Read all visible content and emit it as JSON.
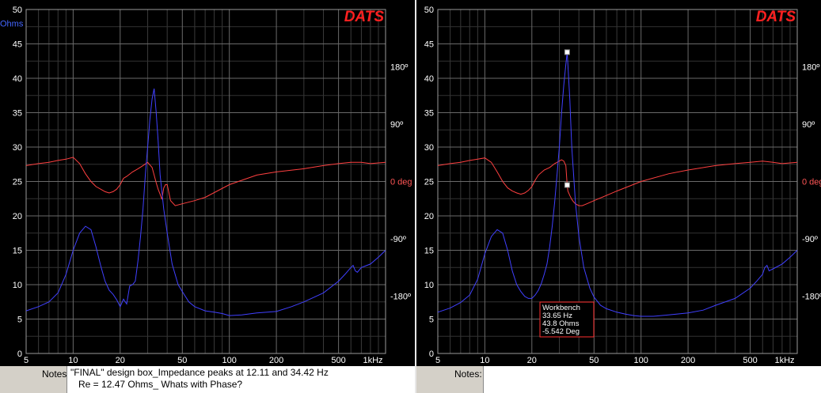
{
  "chart_data": [
    {
      "type": "line",
      "brand": "DATS",
      "xscale": "log",
      "xlim": [
        5,
        1000
      ],
      "ylim": [
        0,
        50
      ],
      "y2lim": [
        -270,
        270
      ],
      "x_ticks": [
        5,
        10,
        20,
        50,
        100,
        200,
        500,
        1000
      ],
      "x_tick_labels": [
        "5",
        "10",
        "20",
        "50",
        "100",
        "200",
        "500",
        "1kHz"
      ],
      "y_ticks": [
        0,
        5,
        10,
        15,
        20,
        25,
        30,
        35,
        40,
        45,
        50
      ],
      "y_tick_labels": [
        "0",
        "5",
        "10",
        "15",
        "20",
        "25",
        "30",
        "35",
        "40",
        "45",
        "50"
      ],
      "ylabel": "Ohms",
      "y2_ticks": [
        180,
        90,
        0,
        -90,
        -180
      ],
      "y2_tick_labels": [
        "180º",
        "90º",
        "0 deg",
        "-90º",
        "-180º"
      ],
      "grid": true,
      "series": [
        {
          "color": "#4040ff",
          "x": [
            5,
            6,
            7,
            8,
            9,
            10,
            11,
            12,
            13,
            14,
            15,
            16,
            17,
            18,
            19,
            20,
            21,
            22,
            23,
            24,
            25,
            26,
            27,
            28,
            29,
            30,
            31,
            32,
            33,
            34,
            35,
            36,
            38,
            40,
            43,
            47,
            50,
            55,
            60,
            70,
            80,
            90,
            100,
            120,
            150,
            200,
            250,
            300,
            400,
            500,
            550,
            600,
            620,
            640,
            660,
            700,
            800,
            900,
            1000
          ],
          "values": [
            6.2,
            6.8,
            7.5,
            8.8,
            11.5,
            15.0,
            17.5,
            18.5,
            18.0,
            15.5,
            12.8,
            10.5,
            9.2,
            8.6,
            7.8,
            6.8,
            7.9,
            7.2,
            9.8,
            10.0,
            10.5,
            13.5,
            17.0,
            21.0,
            26.0,
            30.0,
            34.0,
            37.0,
            38.5,
            35.0,
            31.0,
            26.0,
            21.0,
            17.5,
            13.0,
            10.0,
            9.0,
            7.5,
            6.8,
            6.2,
            6.0,
            5.8,
            5.5,
            5.6,
            5.9,
            6.1,
            6.8,
            7.5,
            8.8,
            10.5,
            11.5,
            12.5,
            12.8,
            12.0,
            11.8,
            12.5,
            13.0,
            14.0,
            15.0
          ]
        },
        {
          "color": "#ff4040",
          "x": [
            5,
            6,
            7,
            8,
            9,
            10,
            11,
            12,
            13,
            14,
            15,
            16,
            17,
            18,
            19,
            20,
            21,
            22,
            24,
            26,
            28,
            30,
            31,
            32,
            33,
            34,
            35,
            36,
            37,
            38,
            39,
            40,
            42,
            45,
            50,
            60,
            70,
            100,
            150,
            200,
            300,
            400,
            500,
            600,
            700,
            800,
            1000
          ],
          "values": [
            25,
            28,
            30,
            33,
            35,
            38,
            28,
            12,
            0,
            -8,
            -12,
            -16,
            -18,
            -16,
            -12,
            -5,
            5,
            8,
            15,
            20,
            25,
            30,
            26,
            22,
            10,
            -2,
            -12,
            -20,
            -28,
            -10,
            -5,
            -5,
            -30,
            -38,
            -35,
            -30,
            -25,
            -5,
            10,
            15,
            20,
            25,
            28,
            30,
            30,
            28,
            30
          ]
        }
      ]
    },
    {
      "type": "line",
      "brand": "DATS",
      "xscale": "log",
      "xlim": [
        5,
        1000
      ],
      "ylim": [
        0,
        50
      ],
      "y2lim": [
        -270,
        270
      ],
      "x_ticks": [
        5,
        10,
        20,
        50,
        100,
        200,
        500,
        1000
      ],
      "x_tick_labels": [
        "5",
        "10",
        "20",
        "50",
        "100",
        "200",
        "500",
        "1kHz"
      ],
      "y_ticks": [
        0,
        5,
        10,
        15,
        20,
        25,
        30,
        35,
        40,
        45,
        50
      ],
      "y_tick_labels": [
        "0",
        "5",
        "10",
        "15",
        "20",
        "25",
        "30",
        "35",
        "40",
        "45",
        "50"
      ],
      "y2_ticks": [
        180,
        90,
        0,
        -90,
        -180
      ],
      "y2_tick_labels": [
        "180º",
        "90º",
        "0 deg",
        "-90º",
        "-180º"
      ],
      "grid": true,
      "series": [
        {
          "color": "#4040ff",
          "x": [
            5,
            6,
            7,
            8,
            9,
            10,
            11,
            12,
            13,
            14,
            15,
            16,
            17,
            18,
            19,
            20,
            21,
            22,
            23,
            24,
            25,
            26,
            27,
            28,
            29,
            30,
            31,
            32,
            33,
            33.65,
            34,
            35,
            36,
            38,
            40,
            43,
            47,
            50,
            55,
            60,
            70,
            80,
            90,
            100,
            120,
            150,
            200,
            250,
            300,
            400,
            500,
            550,
            600,
            620,
            640,
            660,
            700,
            800,
            900,
            1000
          ],
          "values": [
            6.0,
            6.6,
            7.4,
            8.5,
            10.8,
            14.5,
            17.0,
            18.0,
            17.5,
            15.0,
            12.0,
            10.0,
            9.0,
            8.3,
            8.0,
            8.0,
            8.5,
            9.2,
            10.2,
            11.5,
            13.0,
            15.5,
            18.5,
            22.0,
            26.0,
            30.0,
            35.0,
            39.0,
            42.0,
            43.8,
            42.0,
            37.0,
            30.0,
            22.0,
            17.0,
            12.5,
            9.5,
            8.2,
            7.0,
            6.5,
            6.0,
            5.7,
            5.5,
            5.4,
            5.4,
            5.6,
            5.9,
            6.3,
            7.0,
            8.0,
            9.5,
            10.5,
            11.5,
            12.5,
            12.8,
            12.0,
            12.3,
            13.0,
            14.0,
            15.0
          ]
        },
        {
          "color": "#ff4040",
          "x": [
            5,
            6,
            7,
            8,
            9,
            10,
            11,
            12,
            13,
            14,
            15,
            16,
            17,
            18,
            19,
            20,
            21,
            22,
            24,
            26,
            28,
            30,
            31,
            32,
            33,
            33.65,
            34,
            35,
            36,
            37,
            38,
            40,
            42,
            45,
            50,
            60,
            70,
            100,
            150,
            200,
            300,
            400,
            500,
            600,
            700,
            800,
            1000
          ],
          "values": [
            25,
            28,
            30,
            33,
            35,
            37,
            30,
            15,
            0,
            -10,
            -15,
            -18,
            -20,
            -18,
            -14,
            -8,
            2,
            10,
            18,
            22,
            28,
            32,
            34,
            32,
            25,
            -5.5,
            -15,
            -22,
            -28,
            -32,
            -35,
            -38,
            -38,
            -35,
            -30,
            -22,
            -15,
            0,
            12,
            18,
            25,
            28,
            30,
            32,
            30,
            28,
            30
          ]
        }
      ],
      "annotation": {
        "title": "Workbench",
        "line1": "33.65 Hz",
        "line2": "43.8 Ohms",
        "line3": "-5.542 Deg",
        "marker_x": 33.65,
        "marker_y": 43.8,
        "marker_phase": -5.542
      }
    }
  ],
  "notes": {
    "left": {
      "label": "Notes:",
      "line1": "\"FINAL\" design box_Impedance peaks at 12.11 and 34.42 Hz",
      "line2": "Re = 12.47 Ohms_ Whats with Phase?"
    },
    "right": {
      "label": "Notes:",
      "text": ""
    }
  }
}
